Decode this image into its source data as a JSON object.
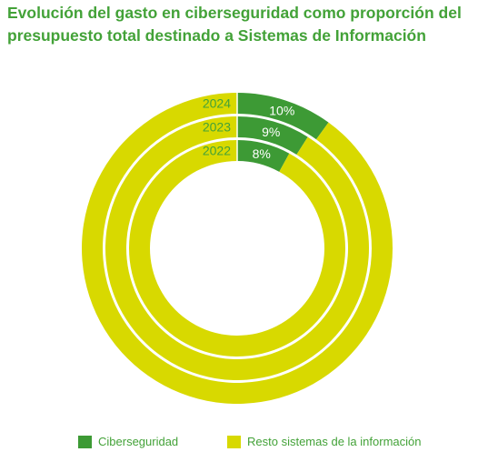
{
  "title_line1": "Evolución del gasto en ciberseguridad como proporción del",
  "title_line2": "presupuesto total destinado a Sistemas de Información",
  "colors": {
    "ciberseguridad": "#3d9a35",
    "resto": "#d8d900",
    "title": "#43a238",
    "ring_label": "#ffffff"
  },
  "chart_data": {
    "type": "pie",
    "subtype": "nested-donut",
    "series": [
      {
        "name": "2024",
        "values": [
          10,
          90
        ],
        "label": "10%"
      },
      {
        "name": "2023",
        "values": [
          9,
          91
        ],
        "label": "9%"
      },
      {
        "name": "2022",
        "values": [
          8,
          92
        ],
        "label": "8%"
      }
    ],
    "categories": [
      "Ciberseguridad",
      "Resto sistemas de la información"
    ],
    "legend_position": "bottom"
  },
  "legend": [
    {
      "label": "Ciberseguridad",
      "color": "#3d9a35"
    },
    {
      "label": "Resto sistemas de la información",
      "color": "#d8d900"
    }
  ]
}
